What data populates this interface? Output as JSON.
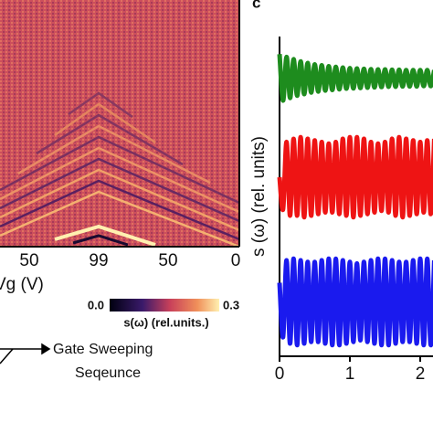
{
  "chart_data": [
    {
      "type": "heatmap",
      "categories": [
        "50",
        "99",
        "50",
        "0"
      ],
      "xlabel": "Vg (V)",
      "colorbar": {
        "ticks": [
          {
            "value": 0,
            "label": "0.0"
          },
          0.3
        ],
        "label": "s(ω) (rel.units.)"
      },
      "annotation": [
        "Gate Sweeping",
        "Seqeunce"
      ]
    },
    {
      "type": "line",
      "panel_label": "c",
      "ylabel": "s (ω) (rel. units)",
      "xlim": [
        0,
        2.2
      ],
      "ylim": [
        0,
        10
      ],
      "xticks": [
        0,
        1,
        2
      ],
      "x": [
        0,
        0.05,
        0.1,
        0.15,
        0.2,
        0.25,
        0.3,
        0.35,
        0.4,
        0.45,
        0.5,
        0.55,
        0.6,
        0.65,
        0.7,
        0.75,
        0.8,
        0.85,
        0.9,
        0.95,
        1,
        1.05,
        1.1,
        1.15,
        1.2,
        1.25,
        1.3,
        1.35,
        1.4,
        1.45,
        1.5,
        1.55,
        1.6,
        1.65,
        1.7,
        1.75,
        1.8,
        1.85,
        1.9,
        1.95,
        2,
        2.05,
        2.1,
        2.15,
        2.2
      ],
      "series": [
        {
          "color": "#1e8c1e",
          "values": [
            9.45,
            8.0,
            9.36,
            8.08,
            9.29,
            8.15,
            9.22,
            8.2,
            9.17,
            8.25,
            9.13,
            8.28,
            9.1,
            8.31,
            9.07,
            8.33,
            9.05,
            8.35,
            9.03,
            8.37,
            9.01,
            8.38,
            9.0,
            8.39,
            8.99,
            8.4,
            8.98,
            8.41,
            8.97,
            8.42,
            8.97,
            8.43,
            8.96,
            8.43,
            8.96,
            8.44,
            8.95,
            8.44,
            8.95,
            8.44,
            8.95,
            8.45,
            8.95,
            8.45,
            8.95
          ]
        },
        {
          "color": "#ee1414",
          "values": [
            5.6,
            4.6,
            6.7,
            4.4,
            6.8,
            4.4,
            6.85,
            4.35,
            6.8,
            4.4,
            6.75,
            4.45,
            6.7,
            4.5,
            6.65,
            4.5,
            6.7,
            4.45,
            6.8,
            4.4,
            6.85,
            4.35,
            6.85,
            4.4,
            6.8,
            4.45,
            6.7,
            4.5,
            6.65,
            4.55,
            6.7,
            4.5,
            6.8,
            4.4,
            6.85,
            4.35,
            6.8,
            4.4,
            6.75,
            4.45,
            6.7,
            4.5,
            6.75,
            4.45,
            6.8
          ]
        },
        {
          "color": "#1a1aee",
          "values": [
            2.3,
            0.6,
            3.0,
            0.4,
            3.05,
            0.35,
            3.0,
            0.4,
            2.95,
            0.45,
            2.95,
            0.45,
            3.0,
            0.4,
            3.05,
            0.35,
            3.05,
            0.35,
            3.0,
            0.4,
            2.95,
            0.45,
            2.9,
            0.5,
            2.95,
            0.45,
            3.0,
            0.4,
            3.05,
            0.35,
            3.05,
            0.35,
            3.0,
            0.4,
            2.95,
            0.45,
            2.95,
            0.45,
            3.0,
            0.4,
            3.05,
            0.35,
            3.05,
            0.35,
            3.0
          ]
        }
      ]
    }
  ]
}
